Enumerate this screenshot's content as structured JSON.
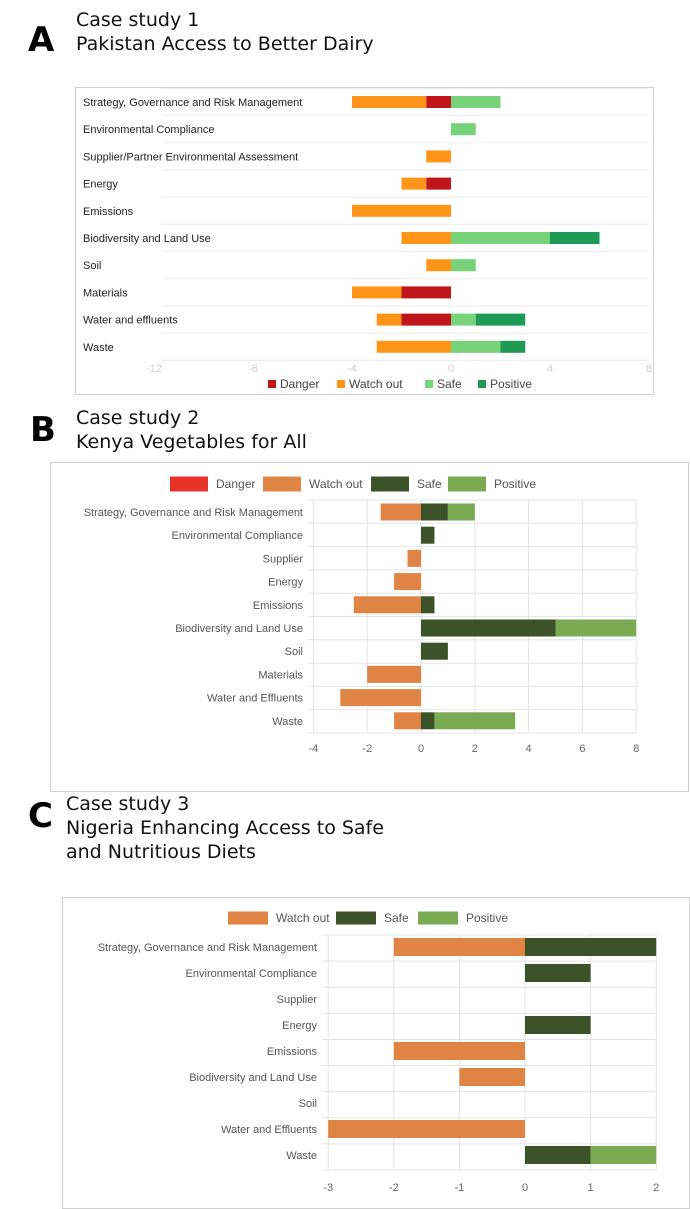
{
  "panels": [
    {
      "letter": "A",
      "title_line1": "Case study 1",
      "title_line2": "Pakistan Access to Better Dairy",
      "title_line3": ""
    },
    {
      "letter": "B",
      "title_line1": "Case study 2",
      "title_line2": "Kenya Vegetables for All",
      "title_line3": ""
    },
    {
      "letter": "C",
      "title_line1": "Case study 3",
      "title_line2": "Nigeria Enhancing Access to Safe",
      "title_line3": "and Nutritious Diets"
    }
  ],
  "chart_data": [
    {
      "type": "bar",
      "orientation": "horizontal-stacked",
      "title": "Pakistan Access to Better Dairy",
      "categories": [
        "Strategy, Governance and Risk Management",
        "Environmental Compliance",
        "Supplier/Partner Environmental Assessment",
        "Energy",
        "Emissions",
        "Biodiversity and Land Use",
        "Soil",
        "Materials",
        "Water and effluents",
        "Waste"
      ],
      "series": [
        {
          "name": "Danger",
          "color": "#c0161b",
          "values": [
            -1,
            0,
            0,
            -1,
            0,
            0,
            0,
            -2,
            -2,
            0
          ]
        },
        {
          "name": "Watch out",
          "color": "#ff9419",
          "values": [
            -3,
            0,
            -1,
            -1,
            -4,
            -2,
            -1,
            -2,
            -1,
            -3
          ]
        },
        {
          "name": "Safe",
          "color": "#77d27a",
          "values": [
            2,
            1,
            0,
            0,
            0,
            4,
            1,
            0,
            1,
            2
          ]
        },
        {
          "name": "Positive",
          "color": "#1e9a55",
          "values": [
            0,
            0,
            0,
            0,
            0,
            2,
            0,
            0,
            2,
            1
          ]
        }
      ],
      "xlim": [
        -12,
        8
      ],
      "xticks": [
        "-12",
        "-8",
        "-4",
        "0",
        "4",
        "8"
      ],
      "legend": "bottom"
    },
    {
      "type": "bar",
      "orientation": "horizontal-stacked",
      "title": "Kenya Vegetables for All",
      "categories": [
        "Strategy, Governance and Risk Management",
        "Environmental Compliance",
        "Supplier",
        "Energy",
        "Emissions",
        "Biodiversity and Land Use",
        "Soil",
        "Materials",
        "Water and Effluents",
        "Waste"
      ],
      "series": [
        {
          "name": "Danger",
          "color": "#e8332a",
          "values": [
            0,
            0,
            0,
            0,
            0,
            0,
            0,
            0,
            0,
            0
          ]
        },
        {
          "name": "Watch out",
          "color": "#e08445",
          "values": [
            -1.5,
            0,
            -0.5,
            -1,
            -2.5,
            0,
            0,
            -2,
            -3,
            -1
          ]
        },
        {
          "name": "Safe",
          "color": "#3c5229",
          "values": [
            1,
            0.5,
            0,
            0,
            0.5,
            5,
            1,
            0,
            0,
            0.5
          ]
        },
        {
          "name": "Positive",
          "color": "#7aab52",
          "values": [
            1,
            0,
            0,
            0,
            0,
            3,
            0,
            0,
            0,
            3
          ]
        }
      ],
      "xlim": [
        -4,
        8
      ],
      "xticks": [
        "-4",
        "-2",
        "0",
        "2",
        "4",
        "6",
        "8"
      ],
      "legend": "top"
    },
    {
      "type": "bar",
      "orientation": "horizontal-stacked",
      "title": "Nigeria Enhancing Access to Safe and Nutritious Diets",
      "categories": [
        "Strategy, Governance and Risk Management",
        "Environmental Compliance",
        "Supplier",
        "Energy",
        "Emissions",
        "Biodiversity and Land Use",
        "Soil",
        "Water and Effluents",
        "Waste"
      ],
      "series": [
        {
          "name": "Watch out",
          "color": "#e08445",
          "values": [
            -2,
            0,
            0,
            0,
            -2,
            -1,
            0,
            -3,
            0
          ]
        },
        {
          "name": "Safe",
          "color": "#3c5229",
          "values": [
            2,
            1,
            0,
            1,
            0,
            0,
            0,
            0,
            1
          ]
        },
        {
          "name": "Positive",
          "color": "#7aab52",
          "values": [
            0,
            0,
            0,
            0,
            0,
            0,
            0,
            0,
            1
          ]
        }
      ],
      "xlim": [
        -3,
        2
      ],
      "xticks": [
        "-3",
        "-2",
        "-1",
        "0",
        "1",
        "2"
      ],
      "legend": "top"
    }
  ]
}
